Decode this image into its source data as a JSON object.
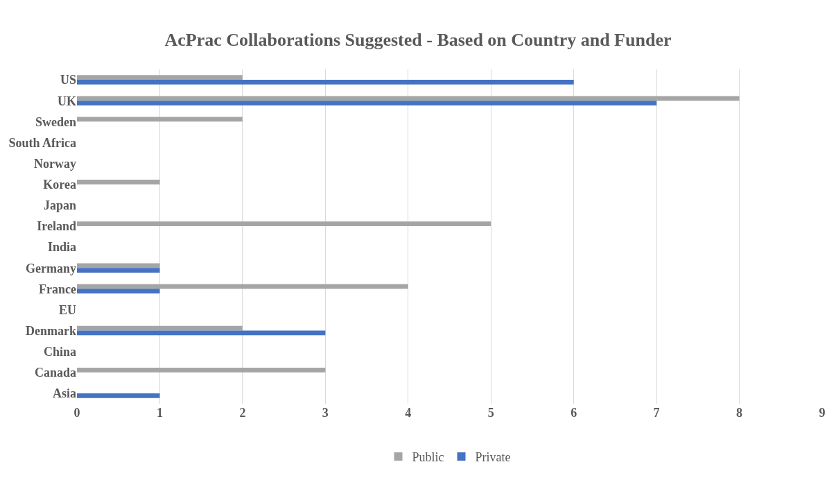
{
  "chart_data": {
    "type": "bar",
    "orientation": "horizontal",
    "title": "AcPrac Collaborations Suggested - Based on Country and Funder",
    "categories": [
      "US",
      "UK",
      "Sweden",
      "South Africa",
      "Norway",
      "Korea",
      "Japan",
      "Ireland",
      "India",
      "Germany",
      "France",
      "EU",
      "Denmark",
      "China",
      "Canada",
      "Asia"
    ],
    "series": [
      {
        "name": "Public",
        "color": "#a5a5a5",
        "values": [
          2,
          8,
          2,
          0,
          0,
          1,
          0,
          5,
          0,
          1,
          4,
          0,
          2,
          0,
          3,
          0
        ]
      },
      {
        "name": "Private",
        "color": "#4472c4",
        "values": [
          6,
          7,
          0,
          0,
          0,
          0,
          0,
          0,
          0,
          1,
          1,
          0,
          3,
          0,
          0,
          1
        ]
      }
    ],
    "xlim": [
      0,
      9
    ],
    "xticks": [
      0,
      1,
      2,
      3,
      4,
      5,
      6,
      7,
      8,
      9
    ],
    "grid": "x",
    "legend": "bottom"
  }
}
